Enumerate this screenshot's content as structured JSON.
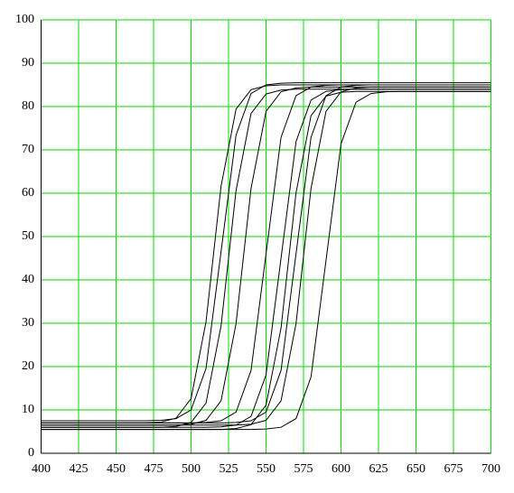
{
  "chart_data": {
    "type": "line",
    "x": [
      400,
      410,
      420,
      430,
      440,
      450,
      460,
      470,
      480,
      490,
      500,
      510,
      520,
      530,
      540,
      550,
      560,
      570,
      580,
      590,
      600,
      610,
      620,
      630,
      640,
      650,
      660,
      670,
      680,
      690,
      700
    ],
    "series": [
      {
        "color": "#000000",
        "values": [
          7,
          7,
          7,
          7,
          7,
          7,
          7,
          7,
          7.2,
          8.1,
          12.6,
          30.4,
          61.6,
          79.4,
          83.9,
          84.8,
          85,
          85,
          85,
          85,
          85,
          85,
          85,
          85,
          85,
          85,
          85,
          85,
          85,
          85,
          85
        ]
      },
      {
        "color": "#000000",
        "values": [
          7.5,
          7.5,
          7.5,
          7.5,
          7.5,
          7.5,
          7.5,
          7.5,
          7.6,
          8.0,
          10.0,
          19.6,
          46.5,
          73.4,
          83.0,
          85.0,
          85.4,
          85.5,
          85.5,
          85.5,
          85.5,
          85.5,
          85.5,
          85.5,
          85.5,
          85.5,
          85.5,
          85.5,
          85.5,
          85.5,
          85.5
        ]
      },
      {
        "color": "#000000",
        "values": [
          6,
          6,
          6,
          6,
          6,
          6,
          6,
          6,
          6,
          6.2,
          7.1,
          11.6,
          29.4,
          60.6,
          78.4,
          82.9,
          83.8,
          84,
          84,
          84,
          84,
          84,
          84,
          84,
          84,
          84,
          84,
          84,
          84,
          84,
          84
        ]
      },
      {
        "color": "#000000",
        "values": [
          6.5,
          6.5,
          6.5,
          6.5,
          6.5,
          6.5,
          6.5,
          6.5,
          6.5,
          6.5,
          6.7,
          7.6,
          12.1,
          29.9,
          61.1,
          78.9,
          83.4,
          84.3,
          84.5,
          84.5,
          84.5,
          84.5,
          84.5,
          84.5,
          84.5,
          84.5,
          84.5,
          84.5,
          84.5,
          84.5,
          84.5
        ]
      },
      {
        "color": "#000000",
        "values": [
          7,
          7,
          7,
          7,
          7,
          7,
          7,
          7,
          7,
          7,
          7,
          7.1,
          7.5,
          9.5,
          19.1,
          46,
          72.9,
          82.5,
          84.5,
          84.9,
          85,
          85,
          85,
          85,
          85,
          85,
          85,
          85,
          85,
          85,
          85
        ]
      },
      {
        "color": "#000000",
        "values": [
          6,
          6,
          6,
          6,
          6,
          6,
          6,
          6,
          6,
          6,
          6,
          6,
          6.1,
          6.5,
          8.5,
          18.1,
          45,
          71.9,
          81.5,
          83.5,
          83.9,
          84,
          84,
          84,
          84,
          84,
          84,
          84,
          84,
          84,
          84
        ]
      },
      {
        "color": "#000000",
        "values": [
          5.5,
          5.5,
          5.5,
          5.5,
          5.5,
          5.5,
          5.5,
          5.5,
          5.5,
          5.5,
          5.5,
          5.5,
          5.5,
          5.7,
          6.6,
          11.1,
          28.9,
          60.1,
          77.9,
          82.4,
          83.3,
          83.5,
          83.5,
          83.5,
          83.5,
          83.5,
          83.5,
          83.5,
          83.5,
          83.5,
          83.5
        ]
      },
      {
        "color": "#000000",
        "values": [
          7,
          7,
          7,
          7,
          7,
          7,
          7,
          7,
          7,
          7,
          7,
          7,
          7,
          7.1,
          7.5,
          9.5,
          19.1,
          46,
          72.9,
          82.5,
          84.5,
          84.9,
          85,
          85,
          85,
          85,
          85,
          85,
          85,
          85,
          85
        ]
      },
      {
        "color": "#000000",
        "values": [
          6.5,
          6.5,
          6.5,
          6.5,
          6.5,
          6.5,
          6.5,
          6.5,
          6.5,
          6.5,
          6.5,
          6.5,
          6.5,
          6.5,
          6.7,
          7.6,
          12.1,
          29.9,
          61.1,
          78.9,
          83.4,
          84.3,
          84.5,
          84.5,
          84.5,
          84.5,
          84.5,
          84.5,
          84.5,
          84.5,
          84.5
        ]
      },
      {
        "color": "#000000",
        "values": [
          5.5,
          5.5,
          5.5,
          5.5,
          5.5,
          5.5,
          5.5,
          5.5,
          5.5,
          5.5,
          5.5,
          5.5,
          5.5,
          5.5,
          5.5,
          5.6,
          6.0,
          8.0,
          17.6,
          44.5,
          71.4,
          81.0,
          83.0,
          83.4,
          83.5,
          83.5,
          83.5,
          83.5,
          83.5,
          83.5,
          83.5
        ]
      }
    ],
    "xlim": [
      400,
      700
    ],
    "ylim": [
      0,
      100
    ],
    "xticks": [
      400,
      425,
      450,
      475,
      500,
      525,
      550,
      575,
      600,
      625,
      650,
      675,
      700
    ],
    "yticks": [
      0,
      10,
      20,
      30,
      40,
      50,
      60,
      70,
      80,
      90,
      100
    ],
    "grid": true,
    "grid_color": "#00dd00"
  }
}
